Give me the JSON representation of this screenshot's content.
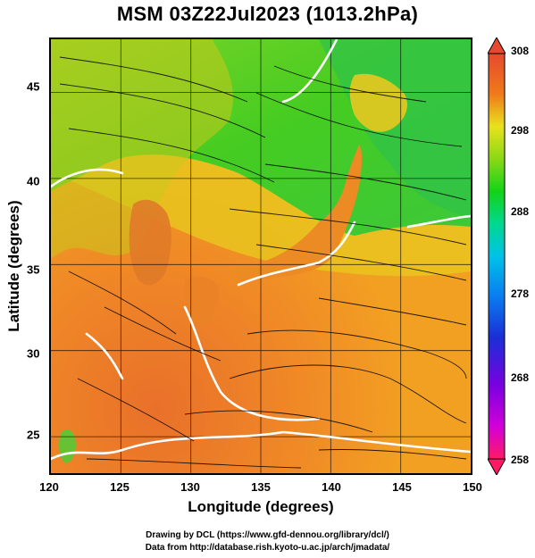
{
  "title": "MSM 03Z22Jul2023 (1013.2hPa)",
  "map": {
    "lon_range": [
      120,
      150
    ],
    "lat_range": [
      22.4,
      47.6
    ],
    "x_ticks": [
      "120",
      "125",
      "130",
      "135",
      "140",
      "145",
      "150"
    ],
    "y_ticks": [
      "25",
      "30",
      "35",
      "40",
      "45"
    ],
    "xlabel": "Longitude (degrees)",
    "ylabel": "Latitude  (degrees)",
    "field": "temperature shading with streamlines",
    "contour_color": "#ffffff",
    "grid": true
  },
  "colorbar": {
    "labels": [
      "308",
      "298",
      "288",
      "278",
      "268",
      "258"
    ],
    "min": 258,
    "max": 308,
    "colors": [
      "#ff1a66",
      "#d200d8",
      "#7a00e0",
      "#1a2fd6",
      "#0a7cf0",
      "#00c2e8",
      "#00d890",
      "#13d318",
      "#8ad816",
      "#e8e21c",
      "#f5b71c",
      "#f07a1a",
      "#e64a2e"
    ]
  },
  "credits": {
    "line1": "Drawing by DCL (https://www.gfd-dennou.org/library/dcl/)",
    "line2": "Data from http://database.rish.kyoto-u.ac.jp/arch/jmadata/"
  }
}
